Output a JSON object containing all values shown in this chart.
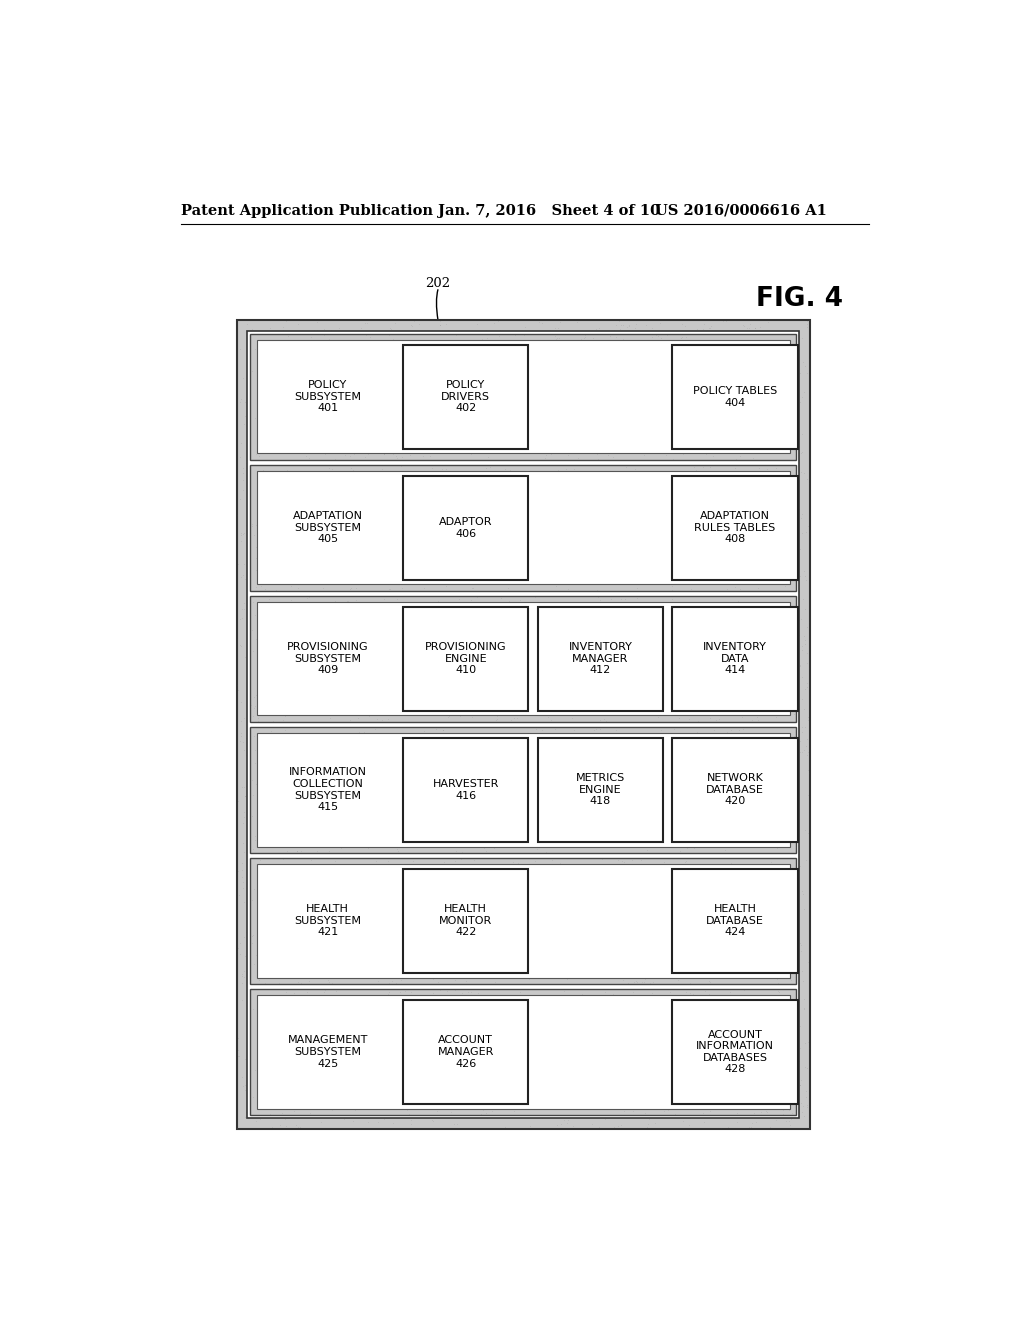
{
  "header_left": "Patent Application Publication",
  "header_mid": "Jan. 7, 2016   Sheet 4 of 10",
  "header_right": "US 2016/0006616 A1",
  "fig_label": "FIG. 4",
  "ref_num": "202",
  "background_color": "#ffffff",
  "text_color": "#000000",
  "rows": [
    {
      "label": "POLICY\nSUBSYSTEM\n401",
      "boxes": [
        {
          "text": "POLICY\nDRIVERS\n402",
          "col": 1
        },
        {
          "text": "POLICY TABLES\n404",
          "col": 3
        }
      ]
    },
    {
      "label": "ADAPTATION\nSUBSYSTEM\n405",
      "boxes": [
        {
          "text": "ADAPTOR\n406",
          "col": 1
        },
        {
          "text": "ADAPTATION\nRULES TABLES\n408",
          "col": 3
        }
      ]
    },
    {
      "label": "PROVISIONING\nSUBSYSTEM\n409",
      "boxes": [
        {
          "text": "PROVISIONING\nENGINE\n410",
          "col": 1
        },
        {
          "text": "INVENTORY\nMANAGER\n412",
          "col": 2
        },
        {
          "text": "INVENTORY\nDATA\n414",
          "col": 3
        }
      ]
    },
    {
      "label": "INFORMATION\nCOLLECTION\nSUBSYSTEM\n415",
      "boxes": [
        {
          "text": "HARVESTER\n416",
          "col": 1
        },
        {
          "text": "METRICS\nENGINE\n418",
          "col": 2
        },
        {
          "text": "NETWORK\nDATABASE\n420",
          "col": 3
        }
      ]
    },
    {
      "label": "HEALTH\nSUBSYSTEM\n421",
      "boxes": [
        {
          "text": "HEALTH\nMONITOR\n422",
          "col": 1
        },
        {
          "text": "HEALTH\nDATABASE\n424",
          "col": 3
        }
      ]
    },
    {
      "label": "MANAGEMENT\nSUBSYSTEM\n425",
      "boxes": [
        {
          "text": "ACCOUNT\nMANAGER\n426",
          "col": 1
        },
        {
          "text": "ACCOUNT\nINFORMATION\nDATABASES\n428",
          "col": 3
        }
      ]
    }
  ]
}
